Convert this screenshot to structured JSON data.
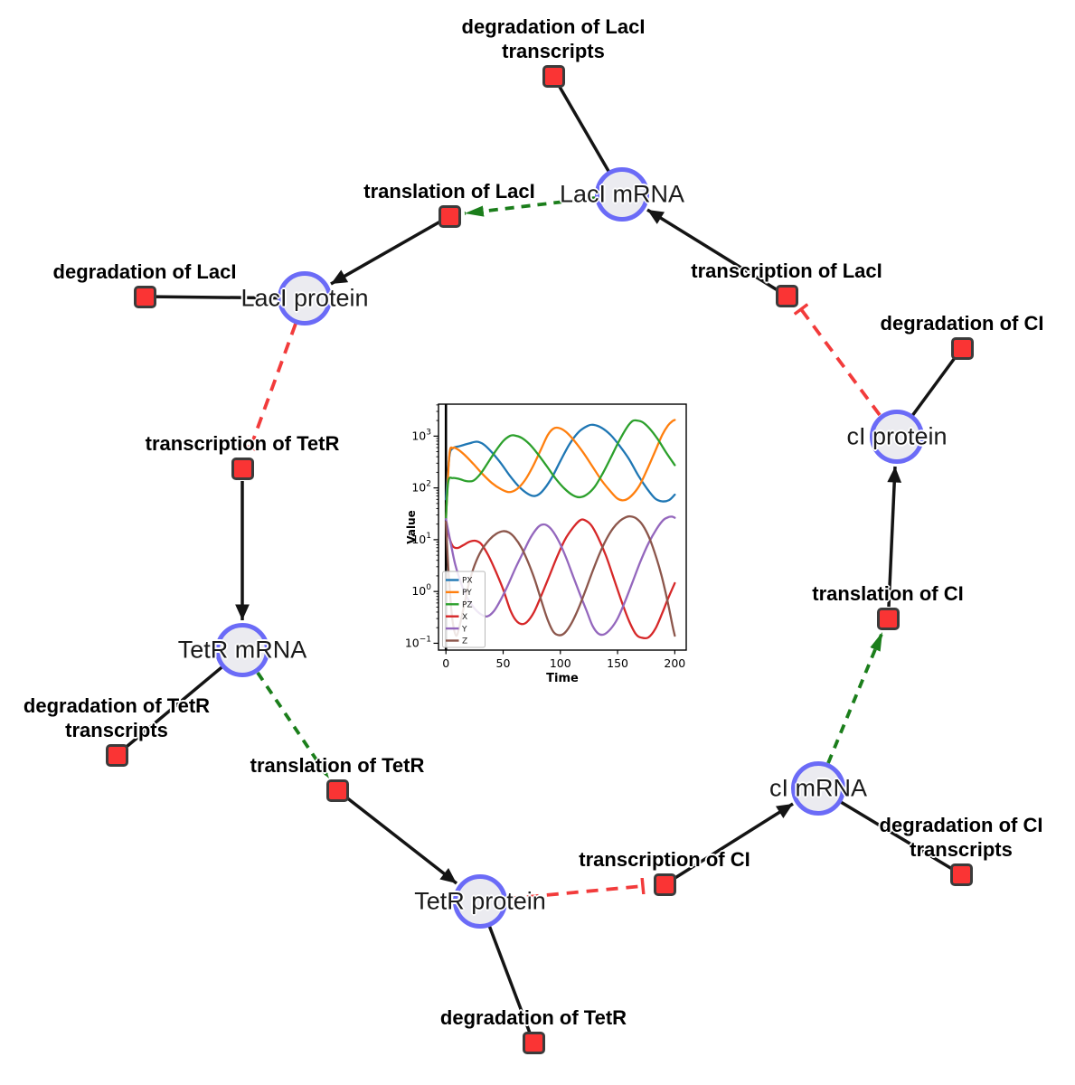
{
  "diagram": {
    "species": [
      {
        "label": "LacI mRNA"
      },
      {
        "label": "LacI protein"
      },
      {
        "label": "cI protein"
      },
      {
        "label": "TetR mRNA"
      },
      {
        "label": "cI mRNA"
      },
      {
        "label": "TetR protein"
      }
    ],
    "reactions": [
      {
        "line1": "degradation of LacI",
        "line2": "transcripts"
      },
      {
        "line1": "translation of LacI",
        "line2": ""
      },
      {
        "line1": "transcription of LacI",
        "line2": ""
      },
      {
        "line1": "degradation of LacI",
        "line2": ""
      },
      {
        "line1": "degradation of CI",
        "line2": ""
      },
      {
        "line1": "transcription of TetR",
        "line2": ""
      },
      {
        "line1": "translation of CI",
        "line2": ""
      },
      {
        "line1": "degradation of TetR",
        "line2": "transcripts"
      },
      {
        "line1": "translation of TetR",
        "line2": ""
      },
      {
        "line1": "degradation of CI",
        "line2": "transcripts"
      },
      {
        "line1": "transcription of CI",
        "line2": ""
      },
      {
        "line1": "degradation of TetR",
        "line2": ""
      }
    ],
    "colors": {
      "species_fill": "#ebebf0",
      "species_border": "#6b6bf7",
      "reaction_fill": "#fa3434",
      "reaction_border": "#3b3b3b",
      "edge_black": "#141414",
      "edge_inhibition_red": "#f23b3b",
      "edge_modifier_green": "#1b7e1b"
    }
  },
  "chart_data": {
    "type": "line",
    "title": "",
    "xlabel": "Time",
    "ylabel": "Value",
    "y_scale": "log",
    "grid": false,
    "legend_position": "lower left",
    "xlim": [
      -6.5,
      210
    ],
    "ylim_log": [
      -1.132,
      3.617
    ],
    "x_ticks": [
      0,
      50,
      100,
      150,
      200
    ],
    "y_ticks": [
      {
        "base": "10",
        "exp_label": "−1",
        "exp_value": -1
      },
      {
        "base": "10",
        "exp_label": "0",
        "exp_value": 0
      },
      {
        "base": "10",
        "exp_label": "1",
        "exp_value": 1
      },
      {
        "base": "10",
        "exp_label": "2",
        "exp_value": 2
      },
      {
        "base": "10",
        "exp_label": "3",
        "exp_value": 3
      }
    ],
    "vline_x": 0,
    "series": [
      {
        "name": "PX",
        "color": "#1f77b4",
        "points": [
          [
            0,
            60
          ],
          [
            3,
            400
          ],
          [
            6,
            580
          ],
          [
            12,
            640
          ],
          [
            20,
            720
          ],
          [
            27,
            780
          ],
          [
            33,
            690
          ],
          [
            40,
            490
          ],
          [
            48,
            300
          ],
          [
            56,
            170
          ],
          [
            64,
            105
          ],
          [
            72,
            76
          ],
          [
            78,
            70
          ],
          [
            84,
            85
          ],
          [
            92,
            150
          ],
          [
            100,
            330
          ],
          [
            108,
            700
          ],
          [
            116,
            1200
          ],
          [
            124,
            1580
          ],
          [
            129,
            1650
          ],
          [
            136,
            1450
          ],
          [
            144,
            1050
          ],
          [
            152,
            640
          ],
          [
            160,
            360
          ],
          [
            168,
            175
          ],
          [
            176,
            95
          ],
          [
            183,
            62
          ],
          [
            189,
            55
          ],
          [
            195,
            58
          ],
          [
            200,
            74
          ]
        ]
      },
      {
        "name": "PY",
        "color": "#ff7f0e",
        "points": [
          [
            0,
            25
          ],
          [
            3,
            430
          ],
          [
            6,
            590
          ],
          [
            10,
            560
          ],
          [
            16,
            440
          ],
          [
            24,
            290
          ],
          [
            32,
            185
          ],
          [
            40,
            125
          ],
          [
            48,
            95
          ],
          [
            55,
            83
          ],
          [
            62,
            95
          ],
          [
            69,
            140
          ],
          [
            76,
            260
          ],
          [
            83,
            550
          ],
          [
            89,
            1050
          ],
          [
            94,
            1400
          ],
          [
            99,
            1430
          ],
          [
            105,
            1200
          ],
          [
            112,
            820
          ],
          [
            120,
            480
          ],
          [
            128,
            260
          ],
          [
            136,
            140
          ],
          [
            143,
            90
          ],
          [
            150,
            62
          ],
          [
            156,
            58
          ],
          [
            162,
            70
          ],
          [
            169,
            110
          ],
          [
            176,
            230
          ],
          [
            183,
            520
          ],
          [
            189,
            1050
          ],
          [
            194,
            1600
          ],
          [
            198,
            1950
          ],
          [
            200,
            2050
          ]
        ]
      },
      {
        "name": "PZ",
        "color": "#2ca02c",
        "points": [
          [
            0,
            25
          ],
          [
            2,
            130
          ],
          [
            6,
            155
          ],
          [
            12,
            148
          ],
          [
            18,
            135
          ],
          [
            24,
            138
          ],
          [
            30,
            185
          ],
          [
            36,
            290
          ],
          [
            43,
            500
          ],
          [
            50,
            800
          ],
          [
            56,
            1010
          ],
          [
            60,
            1030
          ],
          [
            66,
            930
          ],
          [
            73,
            700
          ],
          [
            80,
            460
          ],
          [
            88,
            265
          ],
          [
            96,
            150
          ],
          [
            104,
            95
          ],
          [
            111,
            72
          ],
          [
            117,
            66
          ],
          [
            123,
            74
          ],
          [
            130,
            105
          ],
          [
            137,
            190
          ],
          [
            144,
            380
          ],
          [
            151,
            780
          ],
          [
            158,
            1450
          ],
          [
            163,
            1950
          ],
          [
            167,
            2000
          ],
          [
            172,
            1850
          ],
          [
            178,
            1400
          ],
          [
            185,
            880
          ],
          [
            192,
            500
          ],
          [
            200,
            275
          ]
        ]
      },
      {
        "name": "X",
        "color": "#d62728",
        "points": [
          [
            0,
            22
          ],
          [
            3,
            11
          ],
          [
            6,
            7.5
          ],
          [
            10,
            6.9
          ],
          [
            15,
            7.8
          ],
          [
            21,
            9.2
          ],
          [
            26,
            9.5
          ],
          [
            31,
            8.2
          ],
          [
            37,
            5
          ],
          [
            43,
            2.6
          ],
          [
            50,
            1.1
          ],
          [
            56,
            0.45
          ],
          [
            61,
            0.28
          ],
          [
            66,
            0.235
          ],
          [
            71,
            0.26
          ],
          [
            77,
            0.4
          ],
          [
            83,
            0.8
          ],
          [
            90,
            1.9
          ],
          [
            97,
            4.6
          ],
          [
            104,
            10
          ],
          [
            111,
            17
          ],
          [
            117,
            23.5
          ],
          [
            121,
            24
          ],
          [
            127,
            19
          ],
          [
            133,
            11
          ],
          [
            140,
            4.8
          ],
          [
            147,
            1.7
          ],
          [
            154,
            0.6
          ],
          [
            160,
            0.27
          ],
          [
            166,
            0.15
          ],
          [
            171,
            0.128
          ],
          [
            177,
            0.13
          ],
          [
            183,
            0.19
          ],
          [
            189,
            0.38
          ],
          [
            194,
            0.72
          ],
          [
            200,
            1.45
          ]
        ]
      },
      {
        "name": "Y",
        "color": "#9467bd",
        "points": [
          [
            0,
            25
          ],
          [
            4,
            9
          ],
          [
            8,
            3.4
          ],
          [
            13,
            1.5
          ],
          [
            18,
            0.8
          ],
          [
            24,
            0.5
          ],
          [
            30,
            0.37
          ],
          [
            36,
            0.33
          ],
          [
            42,
            0.42
          ],
          [
            48,
            0.7
          ],
          [
            54,
            1.3
          ],
          [
            61,
            2.9
          ],
          [
            68,
            6
          ],
          [
            74,
            11
          ],
          [
            80,
            17
          ],
          [
            84,
            19.5
          ],
          [
            88,
            19
          ],
          [
            93,
            15
          ],
          [
            99,
            9
          ],
          [
            105,
            4.5
          ],
          [
            111,
            2
          ],
          [
            117,
            0.9
          ],
          [
            123,
            0.42
          ],
          [
            128,
            0.22
          ],
          [
            133,
            0.155
          ],
          [
            138,
            0.148
          ],
          [
            144,
            0.19
          ],
          [
            150,
            0.3
          ],
          [
            156,
            0.6
          ],
          [
            163,
            1.5
          ],
          [
            170,
            3.8
          ],
          [
            177,
            8.5
          ],
          [
            184,
            16
          ],
          [
            190,
            24
          ],
          [
            195,
            27.5
          ],
          [
            198,
            27.8
          ],
          [
            200,
            26.5
          ]
        ]
      },
      {
        "name": "Z",
        "color": "#8c564b",
        "points": [
          [
            0,
            22
          ],
          [
            2,
            3
          ],
          [
            4,
            0.7
          ],
          [
            6,
            0.25
          ],
          [
            9,
            0.14
          ],
          [
            12,
            0.22
          ],
          [
            16,
            0.55
          ],
          [
            20,
            1.4
          ],
          [
            25,
            3.2
          ],
          [
            31,
            6.2
          ],
          [
            38,
            10
          ],
          [
            44,
            13
          ],
          [
            50,
            14.6
          ],
          [
            55,
            13.8
          ],
          [
            60,
            11
          ],
          [
            66,
            7
          ],
          [
            72,
            3.6
          ],
          [
            78,
            1.6
          ],
          [
            84,
            0.6
          ],
          [
            89,
            0.28
          ],
          [
            94,
            0.165
          ],
          [
            99,
            0.143
          ],
          [
            104,
            0.16
          ],
          [
            110,
            0.25
          ],
          [
            116,
            0.48
          ],
          [
            122,
            1.05
          ],
          [
            128,
            2.4
          ],
          [
            134,
            5.2
          ],
          [
            140,
            10
          ],
          [
            146,
            16.5
          ],
          [
            152,
            23
          ],
          [
            157,
            27
          ],
          [
            161,
            28.2
          ],
          [
            166,
            26
          ],
          [
            172,
            19
          ],
          [
            178,
            10.5
          ],
          [
            184,
            4.4
          ],
          [
            189,
            1.8
          ],
          [
            194,
            0.6
          ],
          [
            198,
            0.22
          ],
          [
            200,
            0.14
          ]
        ]
      }
    ]
  }
}
